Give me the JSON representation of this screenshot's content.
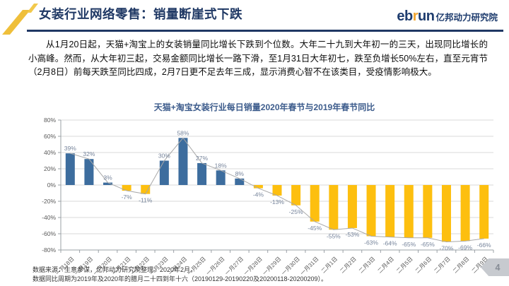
{
  "slide": {
    "title": "女装行业网络零售：销量断崖式下跌",
    "logo": {
      "brand_prefix": "eb",
      "brand_accent": "r",
      "brand_suffix": "un",
      "brand_cn": "亿邦动力研究院"
    },
    "paragraph": "从1月20日起，天猫+淘宝上的女装销量同比增长下跌到个位数。大年二十九到大年初一的三天，出现同比增长的小高峰。然而，从大年初三起，交易金额同比增长一路下滑，至1月31日大年初七，跌至负增长50%左右，直至元宵节（2月8日）前每天跌至同比四成，2月7日更不足去年三成，显示消费心智不在该类目，受疫情影响极大。",
    "footer_line1": "数据来源：生意参谋，亿邦动力研究院整理，2020年2月，",
    "footer_line2": "数据同比周期为2019年及2020年的腊月二十四到年十六（20190129-20190220及20200118-20200209）。",
    "page_number": "4",
    "accent_color": "#1F3864",
    "gold_color": "#EFBF3A"
  },
  "chart_data": {
    "type": "bar",
    "title": "天猫+淘宝女装行业每日销量2020年春节与2019年春节同比",
    "categories": [
      "一月18日",
      "一月19日",
      "一月20日",
      "一月21日",
      "一月22日",
      "一月23日",
      "一月24日",
      "一月25日",
      "一月26日",
      "一月27日",
      "一月28日",
      "一月29日",
      "一月30日",
      "一月31日",
      "二月1日",
      "二月2日",
      "二月3日",
      "二月4日",
      "二月5日",
      "二月6日",
      "二月7日",
      "二月8日",
      "二月9日"
    ],
    "values": [
      39,
      32,
      3,
      -7,
      -11,
      30,
      58,
      27,
      18,
      8,
      -4,
      -13,
      -25,
      -45,
      -55,
      -53,
      -63,
      -64,
      -65,
      -65,
      -70,
      -69,
      -66
    ],
    "unit": "%",
    "xlabel": "",
    "ylabel": "",
    "ylim": [
      -80,
      80
    ],
    "ytick_step": 20,
    "grid": true,
    "legend": false,
    "positive_color": "#3d6d9e",
    "negative_color": "#fdbf0f",
    "line_color": "#a8a8a8",
    "label_color": "#76849b",
    "axis_color": "#9aa0a6",
    "grid_color": "#d9d9d9",
    "tick_label_color": "#595959"
  }
}
